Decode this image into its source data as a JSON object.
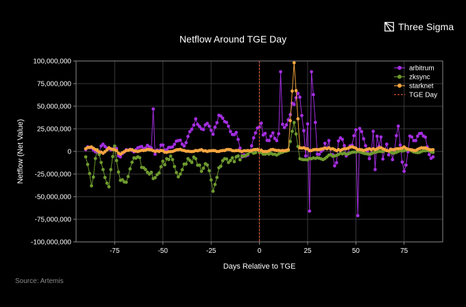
{
  "brand": {
    "name": "Three Sigma",
    "logo_icon": "three-sigma-logo-icon"
  },
  "source": "Source: Artemis",
  "colors": {
    "background": "#000000",
    "grid": "#3a3a3a",
    "arbitrum": "#a32ee0",
    "zksync": "#6e9a2e",
    "starknet": "#f5a540",
    "tge_day": "#e0532e"
  },
  "chart_data": {
    "type": "line",
    "title": "Netflow Around TGE Day",
    "xlabel": "Days Relative to TGE",
    "ylabel": "Netflow (Net Value)",
    "xlim": [
      -95,
      95
    ],
    "ylim": [
      -100000000,
      100000000
    ],
    "x_ticks": [
      -75,
      -50,
      -25,
      0,
      25,
      50,
      75
    ],
    "x_tick_labels": [
      "-75",
      "-50",
      "-25",
      "0",
      "25",
      "50",
      "75"
    ],
    "y_ticks": [
      -100000000,
      -75000000,
      -50000000,
      -25000000,
      0,
      25000000,
      50000000,
      75000000,
      100000000
    ],
    "y_tick_labels": [
      "-100,000,000",
      "-75,000,000",
      "-50,000,000",
      "-25,000,000",
      "0",
      "25,000,000",
      "50,000,000",
      "75,000,000",
      "100,000,000"
    ],
    "grid": true,
    "legend_position": "top-right",
    "markers": true,
    "x_range": [
      -90,
      90
    ],
    "series": [
      {
        "name": "arbitrum",
        "color": "#a32ee0",
        "y_step3_from_minus90": [
          2,
          4,
          -1,
          8,
          3,
          5,
          -6,
          2,
          1,
          4,
          3,
          5,
          -3,
          7,
          2,
          5,
          12,
          6,
          22,
          36,
          25,
          31,
          19,
          40,
          33,
          22,
          21,
          -6,
          -4,
          15,
          27,
          20,
          17,
          12,
          30,
          35,
          52,
          60,
          -5,
          88,
          -3,
          2,
          12,
          -16,
          15,
          -5,
          7,
          25,
          14,
          -8,
          30,
          -15,
          8,
          -9,
          28,
          -22,
          17,
          12,
          20,
          5,
          -6,
          11,
          17,
          -7,
          10,
          15,
          -13,
          3,
          12,
          18,
          17,
          5,
          10,
          14,
          -17,
          13,
          20,
          16,
          27,
          11,
          -10,
          23,
          -4,
          8,
          14,
          25,
          1,
          -13,
          -24,
          17,
          6
        ],
        "spikes": [
          [
            -55,
            47
          ],
          [
            26,
            -66
          ],
          [
            51,
            -71
          ],
          [
            11,
            88
          ],
          [
            60,
            -20
          ],
          [
            63,
            16
          ]
        ]
      },
      {
        "name": "zksync",
        "color": "#6e9a2e",
        "y_step3_from_minus90": [
          -6,
          -38,
          2,
          -20,
          -39,
          6,
          -32,
          -34,
          -12,
          -6,
          -18,
          -25,
          -29,
          -17,
          -8,
          -9,
          -28,
          -14,
          -10,
          -8,
          -22,
          -15,
          -44,
          -18,
          -8,
          -10,
          -6,
          -5,
          -3,
          -2,
          -1,
          -3,
          -2,
          -4,
          -1,
          1,
          32,
          -8,
          -9,
          -8,
          -7,
          -9,
          -4,
          -5,
          -2,
          -3,
          -1,
          0,
          -2,
          -3,
          -1,
          0,
          1,
          -2,
          0,
          1,
          2,
          -1,
          0,
          1,
          -1,
          0,
          2,
          1,
          -2,
          0,
          1,
          2,
          0,
          -1,
          1,
          0,
          2,
          1,
          -1,
          0,
          1,
          2,
          1,
          0,
          1,
          2,
          -1,
          0,
          1,
          -1,
          0,
          2,
          1,
          0,
          1
        ]
      },
      {
        "name": "starknet",
        "color": "#f5a540",
        "y_step3_from_minus90": [
          3,
          5,
          1,
          -2,
          4,
          2,
          -3,
          1,
          2,
          0,
          1,
          2,
          0,
          1,
          -1,
          0,
          2,
          1,
          0,
          1,
          2,
          0,
          1,
          0,
          1,
          2,
          1,
          0,
          1,
          2,
          1,
          0,
          2,
          1,
          1,
          2,
          98,
          4,
          3,
          1,
          2,
          3,
          4,
          2,
          1,
          3,
          5,
          2,
          1,
          3,
          2,
          4,
          1,
          2,
          3,
          5,
          2,
          1,
          4,
          3,
          2,
          6,
          3,
          1,
          2,
          22,
          3,
          1,
          2,
          4,
          9,
          2,
          1,
          3,
          2,
          12,
          4,
          2,
          3,
          1,
          5,
          3,
          2,
          6,
          4,
          3,
          2,
          5,
          3,
          2,
          4
        ]
      }
    ],
    "annotations": [
      {
        "type": "vline",
        "x": 0,
        "label": "TGE Day",
        "color": "#e0532e",
        "style": "dashed"
      }
    ]
  },
  "legend": [
    {
      "label": "arbitrum",
      "color": "#a32ee0",
      "kind": "marker"
    },
    {
      "label": "zksync",
      "color": "#6e9a2e",
      "kind": "marker"
    },
    {
      "label": "starknet",
      "color": "#f5a540",
      "kind": "marker"
    },
    {
      "label": "TGE Day",
      "color": "#e0532e",
      "kind": "dashed"
    }
  ]
}
